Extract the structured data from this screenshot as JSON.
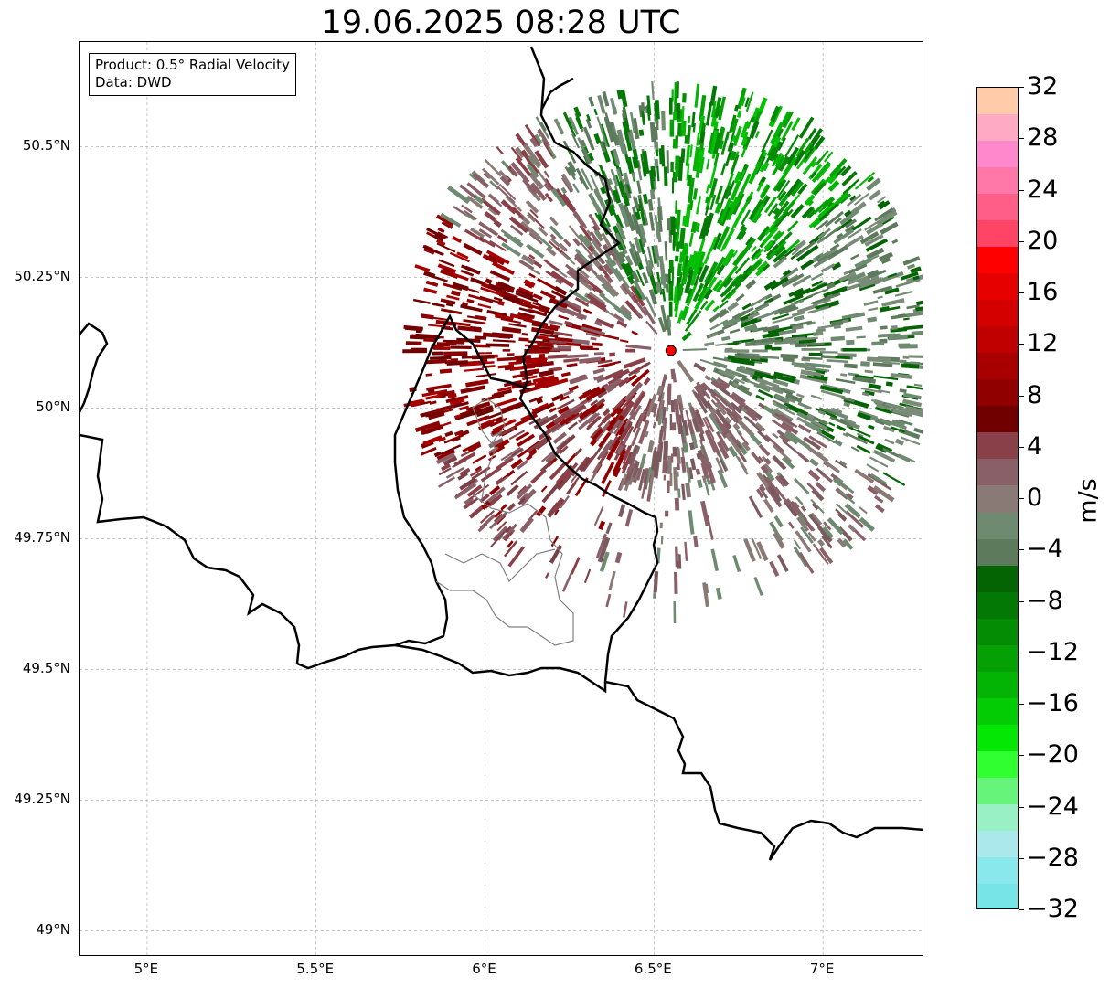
{
  "title": "19.06.2025 08:28 UTC",
  "info_box": {
    "product": "Product: 0.5° Radial Velocity",
    "data": "Data: DWD"
  },
  "axes": {
    "lat_ticks": [
      "50.5°N",
      "50.25°N",
      "50°N",
      "49.75°N",
      "49.5°N",
      "49.25°N",
      "49°N"
    ],
    "lon_ticks": [
      "5°E",
      "5.5°E",
      "6°E",
      "6.5°E",
      "7°E"
    ],
    "lat_values": [
      50.5,
      50.25,
      50.0,
      49.75,
      49.5,
      49.25,
      49.0
    ],
    "lon_values": [
      5.0,
      5.5,
      6.0,
      6.5,
      7.0
    ],
    "lon_range": [
      4.8,
      7.3
    ],
    "lat_range": [
      48.95,
      50.7
    ],
    "gridlines": true
  },
  "radar": {
    "site_lon": 6.55,
    "site_lat": 50.11,
    "site_marker_color": "#ff0000",
    "max_range_deg": 0.78
  },
  "colorbar": {
    "unit": "m/s",
    "min": -32,
    "max": 32,
    "tick_labels": [
      "32",
      "28",
      "24",
      "20",
      "16",
      "12",
      "8",
      "4",
      "0",
      "−4",
      "−8",
      "−12",
      "−16",
      "−20",
      "−24",
      "−28",
      "−32"
    ],
    "tick_values": [
      32,
      28,
      24,
      20,
      16,
      12,
      8,
      4,
      0,
      -4,
      -8,
      -12,
      -16,
      -20,
      -24,
      -28,
      -32
    ],
    "colors_top_to_bottom": [
      "#ffcba8",
      "#ffaac4",
      "#ff88cc",
      "#ff78a8",
      "#ff5e88",
      "#ff4466",
      "#ff0000",
      "#e60000",
      "#d40000",
      "#c00000",
      "#a80000",
      "#900000",
      "#700000",
      "#8a4048",
      "#8a6068",
      "#8a7a76",
      "#6e8a70",
      "#5e7a5c",
      "#046404",
      "#047804",
      "#048c04",
      "#04a004",
      "#04b404",
      "#04cc04",
      "#04e604",
      "#30ff30",
      "#66f57a",
      "#99f0c4",
      "#aae8ec",
      "#88e8ec",
      "#77e4e8"
    ]
  }
}
